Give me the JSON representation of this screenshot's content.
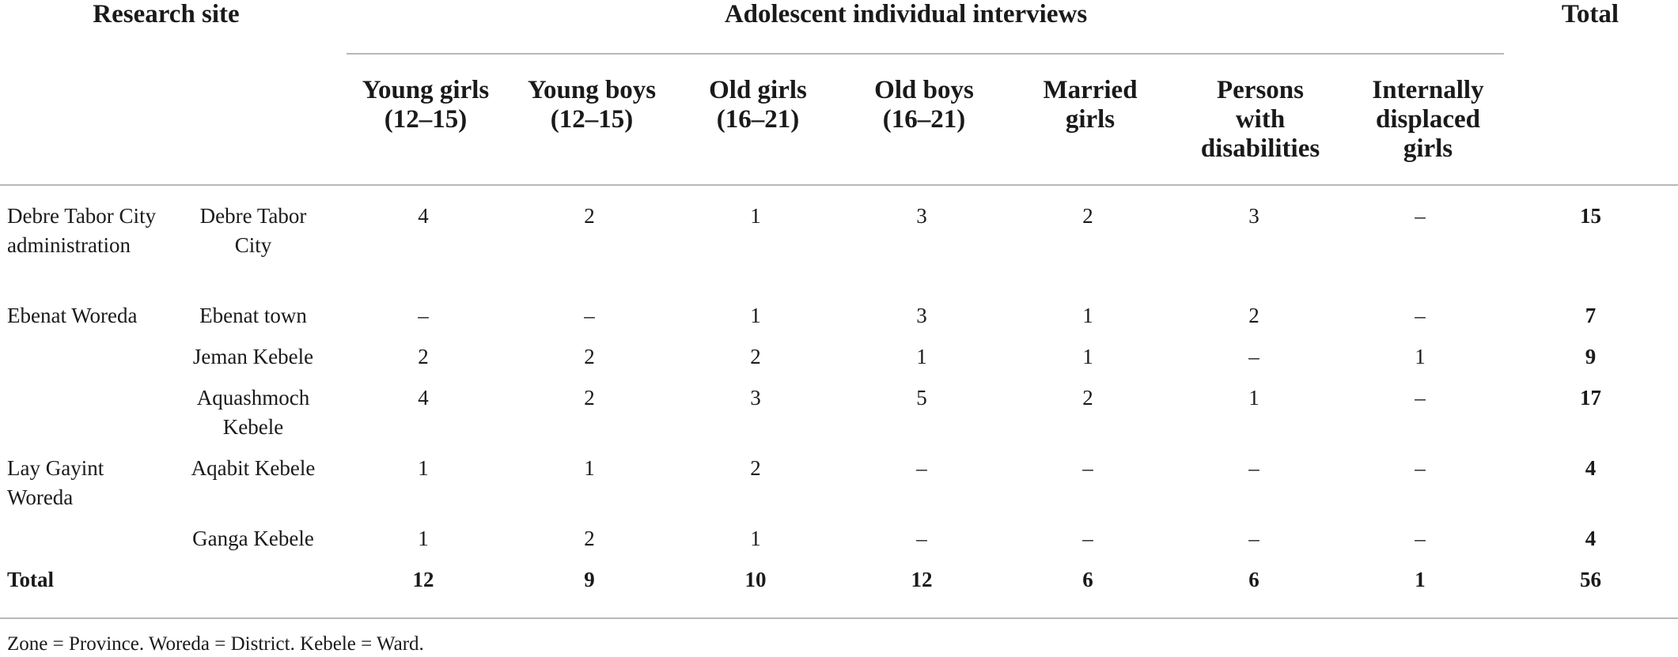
{
  "header": {
    "research_site": "Research site",
    "group": "Adolescent individual interviews",
    "total": "Total",
    "columns": [
      "Young girls\n(12–15)",
      "Young boys\n(12–15)",
      "Old girls\n(16–21)",
      "Old boys\n(16–21)",
      "Married\ngirls",
      "Persons\nwith\ndisabilities",
      "Internally\ndisplaced\ngirls"
    ]
  },
  "rows": [
    {
      "site": "Debre Tabor City administration",
      "sub": "Debre Tabor City",
      "values": [
        "4",
        "2",
        "1",
        "3",
        "2",
        "3",
        "–"
      ],
      "total": "15"
    },
    {
      "site": "Ebenat Woreda",
      "sub": "Ebenat town",
      "values": [
        "–",
        "–",
        "1",
        "3",
        "1",
        "2",
        "–"
      ],
      "total": "7"
    },
    {
      "site": "",
      "sub": "Jeman Kebele",
      "values": [
        "2",
        "2",
        "2",
        "1",
        "1",
        "–",
        "1"
      ],
      "total": "9"
    },
    {
      "site": "",
      "sub": "Aquashmoch Kebele",
      "values": [
        "4",
        "2",
        "3",
        "5",
        "2",
        "1",
        "–"
      ],
      "total": "17"
    },
    {
      "site": "Lay Gayint Woreda",
      "sub": "Aqabit Kebele",
      "values": [
        "1",
        "1",
        "2",
        "–",
        "–",
        "–",
        "–"
      ],
      "total": "4"
    },
    {
      "site": "",
      "sub": "Ganga Kebele",
      "values": [
        "1",
        "2",
        "1",
        "–",
        "–",
        "–",
        "–"
      ],
      "total": "4"
    }
  ],
  "totals": {
    "label": "Total",
    "values": [
      "12",
      "9",
      "10",
      "12",
      "6",
      "6",
      "1"
    ],
    "total": "56"
  },
  "footnote": "Zone = Province. Woreda = District. Kebele = Ward."
}
